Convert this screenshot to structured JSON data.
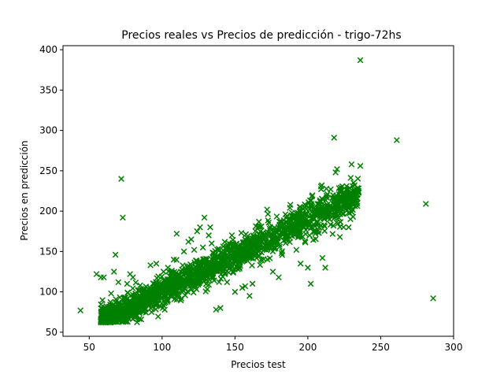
{
  "chart_data": {
    "type": "scatter",
    "title": "Precios reales vs Precios de predicción - trigo-72hs",
    "xlabel": "Precios test",
    "ylabel": "Precios en predicción",
    "xlim": [
      32,
      300
    ],
    "ylim": [
      45,
      405
    ],
    "x_ticks": [
      50,
      100,
      150,
      200,
      250,
      300
    ],
    "y_ticks": [
      50,
      100,
      150,
      200,
      250,
      300,
      350,
      400
    ],
    "grid": false,
    "legend": "none",
    "marker": "x",
    "color": "#008000",
    "outliers": [
      {
        "x": 44,
        "y": 77
      },
      {
        "x": 55,
        "y": 122
      },
      {
        "x": 58,
        "y": 118
      },
      {
        "x": 60,
        "y": 118
      },
      {
        "x": 65,
        "y": 98
      },
      {
        "x": 67,
        "y": 125
      },
      {
        "x": 68,
        "y": 146
      },
      {
        "x": 70,
        "y": 112
      },
      {
        "x": 72,
        "y": 240
      },
      {
        "x": 73,
        "y": 192
      },
      {
        "x": 76,
        "y": 110
      },
      {
        "x": 78,
        "y": 122
      },
      {
        "x": 80,
        "y": 118
      },
      {
        "x": 85,
        "y": 108
      },
      {
        "x": 92,
        "y": 133
      },
      {
        "x": 96,
        "y": 135
      },
      {
        "x": 101,
        "y": 125
      },
      {
        "x": 104,
        "y": 130
      },
      {
        "x": 108,
        "y": 140
      },
      {
        "x": 110,
        "y": 172
      },
      {
        "x": 115,
        "y": 150
      },
      {
        "x": 118,
        "y": 162
      },
      {
        "x": 120,
        "y": 165
      },
      {
        "x": 122,
        "y": 152
      },
      {
        "x": 124,
        "y": 175
      },
      {
        "x": 126,
        "y": 180
      },
      {
        "x": 128,
        "y": 155
      },
      {
        "x": 129,
        "y": 192
      },
      {
        "x": 130,
        "y": 120
      },
      {
        "x": 132,
        "y": 170
      },
      {
        "x": 133,
        "y": 180
      },
      {
        "x": 134,
        "y": 160
      },
      {
        "x": 137,
        "y": 78
      },
      {
        "x": 140,
        "y": 80
      },
      {
        "x": 150,
        "y": 100
      },
      {
        "x": 152,
        "y": 128
      },
      {
        "x": 155,
        "y": 105
      },
      {
        "x": 157,
        "y": 107
      },
      {
        "x": 160,
        "y": 95
      },
      {
        "x": 162,
        "y": 110
      },
      {
        "x": 168,
        "y": 140
      },
      {
        "x": 172,
        "y": 202
      },
      {
        "x": 176,
        "y": 125
      },
      {
        "x": 180,
        "y": 118
      },
      {
        "x": 182,
        "y": 148
      },
      {
        "x": 195,
        "y": 135
      },
      {
        "x": 200,
        "y": 130
      },
      {
        "x": 202,
        "y": 110
      },
      {
        "x": 205,
        "y": 175
      },
      {
        "x": 210,
        "y": 142
      },
      {
        "x": 212,
        "y": 130
      },
      {
        "x": 218,
        "y": 291
      },
      {
        "x": 219,
        "y": 248
      },
      {
        "x": 220,
        "y": 252
      },
      {
        "x": 222,
        "y": 168
      },
      {
        "x": 225,
        "y": 208
      },
      {
        "x": 228,
        "y": 180
      },
      {
        "x": 230,
        "y": 258
      },
      {
        "x": 231,
        "y": 193
      },
      {
        "x": 236,
        "y": 387
      },
      {
        "x": 236,
        "y": 256
      },
      {
        "x": 261,
        "y": 288
      },
      {
        "x": 281,
        "y": 209
      },
      {
        "x": 286,
        "y": 92
      }
    ],
    "cluster": {
      "count": 1900,
      "x_range": [
        58,
        235
      ],
      "trend_intercept": 10,
      "trend_slope": 0.9,
      "spread": 7
    }
  }
}
